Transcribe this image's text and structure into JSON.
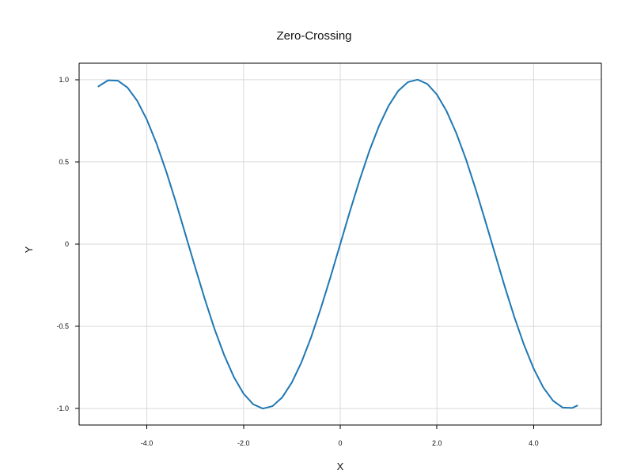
{
  "chart_data": {
    "type": "line",
    "title": "Zero-Crossing",
    "xlabel": "X",
    "ylabel": "Y",
    "xlim": [
      -5.4,
      5.4
    ],
    "ylim": [
      -1.1,
      1.1
    ],
    "grid": true,
    "x_ticks": [
      -4,
      -2,
      0,
      2,
      4
    ],
    "x_tick_labels": [
      "-4.0",
      "-2.0",
      "0",
      "2.0",
      "4.0"
    ],
    "y_ticks": [
      -1,
      -0.5,
      0,
      0.5,
      1
    ],
    "y_tick_labels": [
      "-1.0",
      "-0.5",
      "0",
      "0.5",
      "1.0"
    ],
    "series": [
      {
        "color": "#1f77b4",
        "x": [
          -5.0,
          -4.8,
          -4.6,
          -4.4,
          -4.2,
          -4.0,
          -3.8,
          -3.6,
          -3.4,
          -3.2,
          -3.0,
          -2.8,
          -2.6,
          -2.4,
          -2.2,
          -2.0,
          -1.8,
          -1.6,
          -1.4,
          -1.2,
          -1.0,
          -0.8,
          -0.6,
          -0.4,
          -0.2,
          0.0,
          0.2,
          0.4,
          0.6,
          0.8,
          1.0,
          1.2,
          1.4,
          1.6,
          1.8,
          2.0,
          2.2,
          2.4,
          2.6,
          2.8,
          3.0,
          3.2,
          3.4,
          3.6,
          3.8,
          4.0,
          4.2,
          4.4,
          4.6,
          4.8,
          4.9
        ],
        "y": [
          0.959,
          0.996,
          0.994,
          0.952,
          0.872,
          0.757,
          0.612,
          0.443,
          0.256,
          0.058,
          -0.141,
          -0.335,
          -0.516,
          -0.675,
          -0.808,
          -0.909,
          -0.974,
          -1.0,
          -0.985,
          -0.932,
          -0.841,
          -0.717,
          -0.565,
          -0.389,
          -0.199,
          0.0,
          0.199,
          0.389,
          0.565,
          0.717,
          0.841,
          0.932,
          0.985,
          1.0,
          0.974,
          0.909,
          0.808,
          0.675,
          0.516,
          0.335,
          0.141,
          -0.058,
          -0.256,
          -0.443,
          -0.612,
          -0.757,
          -0.872,
          -0.952,
          -0.994,
          -0.996,
          -0.982
        ]
      }
    ]
  }
}
